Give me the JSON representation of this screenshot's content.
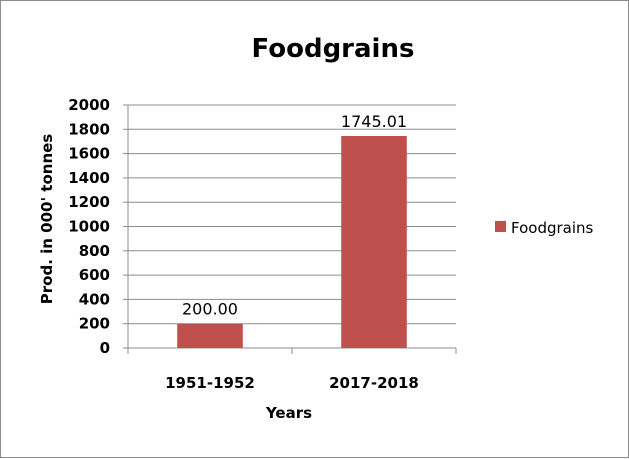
{
  "chart_data": {
    "type": "bar",
    "title": "Foodgrains",
    "xlabel": "Years",
    "ylabel": "Prod. in 000' tonnes",
    "categories": [
      "1951-1952",
      "2017-2018"
    ],
    "series": [
      {
        "name": "Foodgrains",
        "values": [
          200.0,
          1745.01
        ],
        "labels": [
          "200.00",
          "1745.01"
        ],
        "color": "#c0504d"
      }
    ],
    "ylim": [
      0,
      2000
    ],
    "yticks": [
      0,
      200,
      400,
      600,
      800,
      1000,
      1200,
      1400,
      1600,
      1800,
      2000
    ],
    "grid": true,
    "legend": "right"
  }
}
